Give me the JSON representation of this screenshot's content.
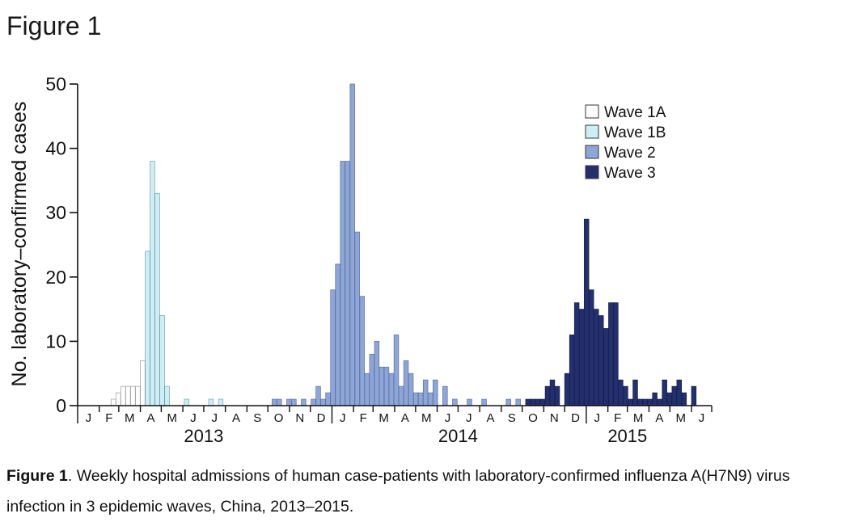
{
  "page": {
    "figure_title": "Figure 1",
    "caption_bold": "Figure 1",
    "caption_text": ". Weekly hospital admissions of human case-patients with laboratory-confirmed influenza A(H7N9) virus infection in 3 epidemic waves, China, 2013–2015."
  },
  "chart_data": {
    "type": "bar",
    "ylabel": "No. laboratory–confirmed cases",
    "xlabel": "",
    "ylim": [
      0,
      50
    ],
    "yticks": [
      0,
      10,
      20,
      30,
      40,
      50
    ],
    "x_unit": "week",
    "x_range": [
      "2013-01-01",
      "2015-06-30"
    ],
    "month_labels": [
      {
        "label": "J",
        "date": "2013-01"
      },
      {
        "label": "F",
        "date": "2013-02"
      },
      {
        "label": "M",
        "date": "2013-03"
      },
      {
        "label": "A",
        "date": "2013-04"
      },
      {
        "label": "M",
        "date": "2013-05"
      },
      {
        "label": "J",
        "date": "2013-06"
      },
      {
        "label": "J",
        "date": "2013-07"
      },
      {
        "label": "A",
        "date": "2013-08"
      },
      {
        "label": "S",
        "date": "2013-09"
      },
      {
        "label": "O",
        "date": "2013-10"
      },
      {
        "label": "N",
        "date": "2013-11"
      },
      {
        "label": "D",
        "date": "2013-12"
      },
      {
        "label": "J",
        "date": "2014-01"
      },
      {
        "label": "F",
        "date": "2014-02"
      },
      {
        "label": "M",
        "date": "2014-03"
      },
      {
        "label": "A",
        "date": "2014-04"
      },
      {
        "label": "M",
        "date": "2014-05"
      },
      {
        "label": "J",
        "date": "2014-06"
      },
      {
        "label": "J",
        "date": "2014-07"
      },
      {
        "label": "A",
        "date": "2014-08"
      },
      {
        "label": "S",
        "date": "2014-09"
      },
      {
        "label": "O",
        "date": "2014-10"
      },
      {
        "label": "N",
        "date": "2014-11"
      },
      {
        "label": "D",
        "date": "2014-12"
      },
      {
        "label": "J",
        "date": "2015-01"
      },
      {
        "label": "F",
        "date": "2015-02"
      },
      {
        "label": "M",
        "date": "2015-03"
      },
      {
        "label": "A",
        "date": "2015-04"
      },
      {
        "label": "M",
        "date": "2015-05"
      },
      {
        "label": "J",
        "date": "2015-06"
      }
    ],
    "year_labels": [
      {
        "label": "2013",
        "date": "2013-07"
      },
      {
        "label": "2014",
        "date": "2014-07"
      },
      {
        "label": "2015",
        "date": "2015-03"
      }
    ],
    "legend_position": "top-right",
    "series": [
      {
        "name": "Wave 1A",
        "color": "#ffffff",
        "stroke": "#9a9a9a",
        "x": [
          "2013-02-18",
          "2013-02-25",
          "2013-03-04",
          "2013-03-11",
          "2013-03-18",
          "2013-03-25",
          "2013-04-01"
        ],
        "values": [
          1,
          2,
          3,
          3,
          3,
          3,
          7
        ]
      },
      {
        "name": "Wave 1B",
        "color": "#cdeef5",
        "stroke": "#6fa3b1",
        "x": [
          "2013-04-08",
          "2013-04-15",
          "2013-04-22",
          "2013-04-29",
          "2013-05-06",
          "2013-05-13",
          "2013-06-03",
          "2013-07-08",
          "2013-07-22"
        ],
        "values": [
          24,
          38,
          33,
          14,
          3,
          0,
          1,
          1,
          1
        ]
      },
      {
        "name": "Wave 2",
        "color": "#8ea6d6",
        "stroke": "#5a6fa6",
        "x": [
          "2013-10-07",
          "2013-10-14",
          "2013-10-28",
          "2013-11-04",
          "2013-11-18",
          "2013-12-02",
          "2013-12-09",
          "2013-12-16",
          "2013-12-23",
          "2013-12-30",
          "2014-01-06",
          "2014-01-13",
          "2014-01-20",
          "2014-01-27",
          "2014-02-03",
          "2014-02-10",
          "2014-02-17",
          "2014-02-24",
          "2014-03-03",
          "2014-03-10",
          "2014-03-17",
          "2014-03-24",
          "2014-03-31",
          "2014-04-07",
          "2014-04-14",
          "2014-04-21",
          "2014-04-28",
          "2014-05-05",
          "2014-05-12",
          "2014-05-19",
          "2014-05-26",
          "2014-06-09",
          "2014-06-23",
          "2014-07-14",
          "2014-08-04",
          "2014-09-08",
          "2014-09-22"
        ],
        "values": [
          1,
          1,
          1,
          1,
          1,
          1,
          3,
          1,
          2,
          18,
          22,
          38,
          38,
          50,
          27,
          17,
          5,
          8,
          10,
          6,
          6,
          5,
          11,
          3,
          7,
          5,
          2,
          2,
          4,
          2,
          4,
          3,
          1,
          1,
          1,
          1,
          1
        ]
      },
      {
        "name": "Wave 3",
        "color": "#24306e",
        "stroke": "#151d4d",
        "x": [
          "2014-10-06",
          "2014-10-13",
          "2014-10-20",
          "2014-10-27",
          "2014-11-03",
          "2014-11-10",
          "2014-11-17",
          "2014-11-24",
          "2014-12-01",
          "2014-12-08",
          "2014-12-15",
          "2014-12-22",
          "2014-12-29",
          "2015-01-05",
          "2015-01-12",
          "2015-01-19",
          "2015-01-26",
          "2015-02-02",
          "2015-02-09",
          "2015-02-16",
          "2015-02-23",
          "2015-03-02",
          "2015-03-09",
          "2015-03-16",
          "2015-03-23",
          "2015-03-30",
          "2015-04-06",
          "2015-04-13",
          "2015-04-20",
          "2015-04-27",
          "2015-05-04",
          "2015-05-11",
          "2015-05-18",
          "2015-05-25",
          "2015-06-01"
        ],
        "values": [
          1,
          1,
          1,
          1,
          3,
          4,
          3,
          0,
          5,
          11,
          16,
          15,
          29,
          18,
          15,
          14,
          12,
          16,
          16,
          4,
          3,
          1,
          4,
          1,
          1,
          1,
          2,
          1,
          4,
          2,
          3,
          4,
          2,
          0,
          3
        ]
      }
    ]
  }
}
